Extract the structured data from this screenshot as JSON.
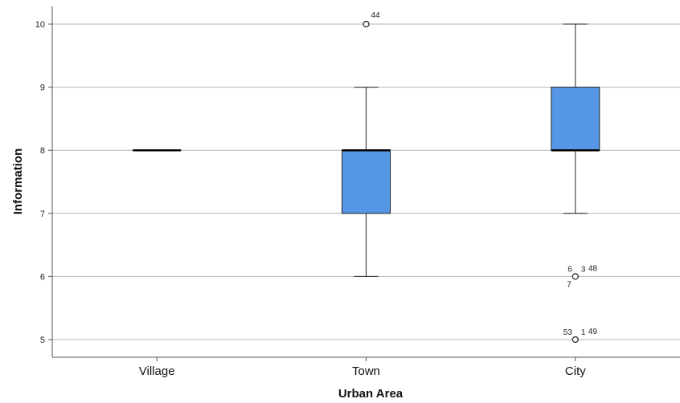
{
  "chart_data": {
    "type": "boxplot",
    "xlabel": "Urban Area",
    "ylabel": "Information",
    "ylim": [
      4.72,
      10.28
    ],
    "yticks": [
      5,
      6,
      7,
      8,
      9,
      10
    ],
    "grid": "horizontal",
    "box_color": "#5596e6",
    "categories": [
      "Village",
      "Town",
      "City"
    ],
    "boxes": [
      {
        "name": "Village",
        "whisker_low": 8,
        "q1": 8,
        "median": 8,
        "q3": 8,
        "whisker_high": 8,
        "outliers": []
      },
      {
        "name": "Town",
        "whisker_low": 6,
        "q1": 7,
        "median": 8,
        "q3": 8,
        "whisker_high": 9,
        "outliers": [
          {
            "value": 10,
            "labels": [
              "44"
            ]
          }
        ]
      },
      {
        "name": "City",
        "whisker_low": 7,
        "q1": 8,
        "median": 8,
        "q3": 9,
        "whisker_high": 10,
        "outliers": [
          {
            "value": 6,
            "labels": [
              "6",
              "3",
              "48",
              "7"
            ]
          },
          {
            "value": 5,
            "labels": [
              "53",
              "1",
              "49"
            ]
          }
        ]
      }
    ]
  }
}
